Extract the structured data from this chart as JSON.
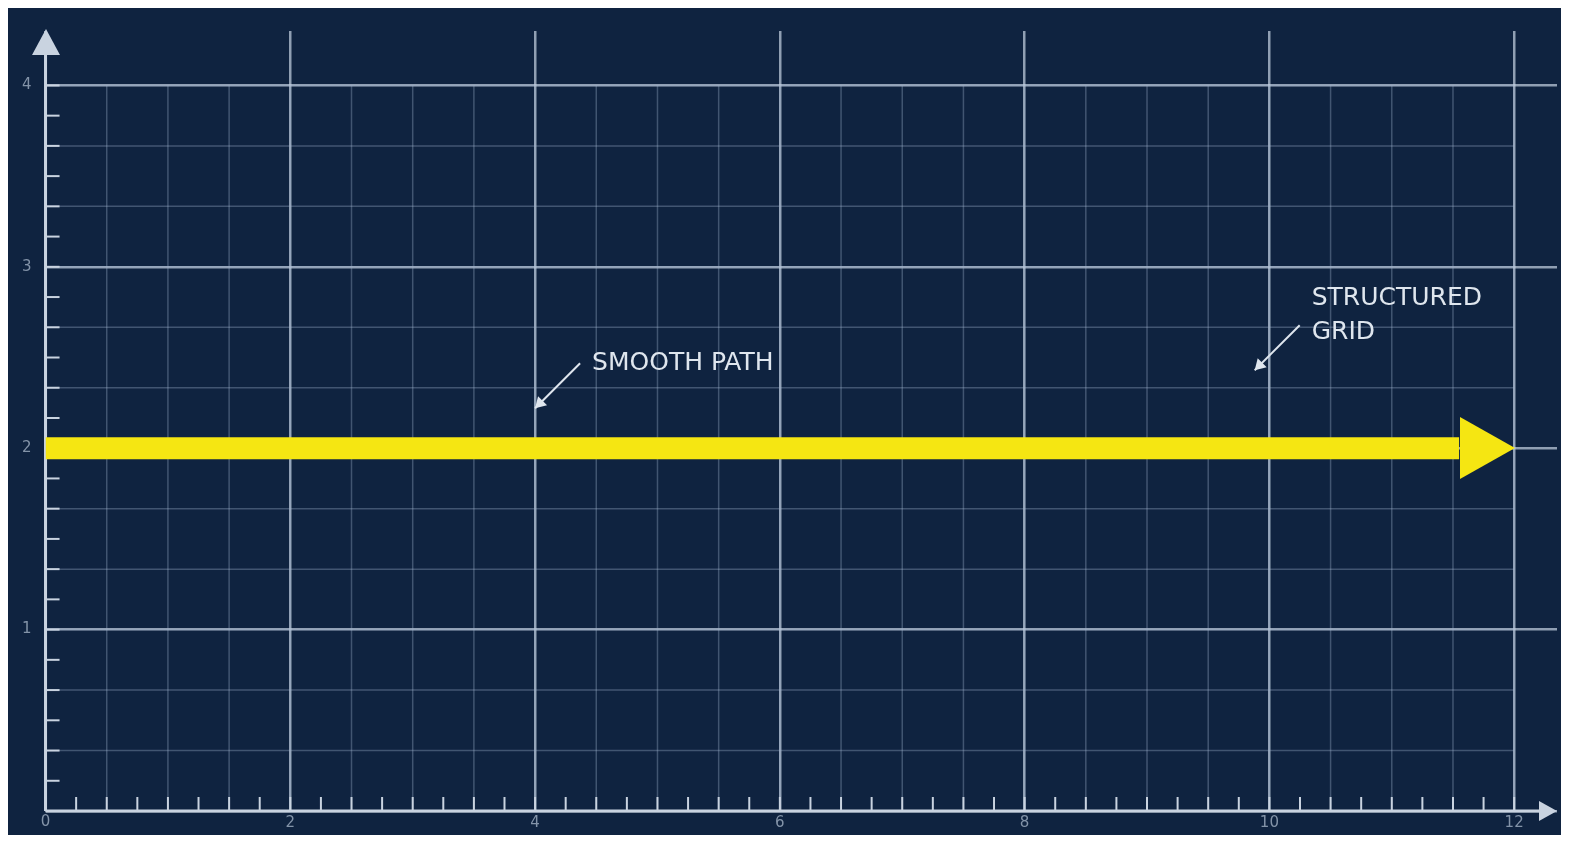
{
  "chart_data": {
    "type": "line",
    "x": [
      0,
      11.55
    ],
    "xlim": [
      0,
      12.35
    ],
    "ylim": [
      0,
      4.3
    ],
    "xticks": [
      0,
      2,
      4,
      6,
      8,
      10,
      12
    ],
    "yticks": [
      {
        "value": 0,
        "label": null
      },
      1,
      2,
      3,
      4
    ],
    "series": [
      {
        "color": "#f5e612",
        "values": [
          2,
          2
        ]
      }
    ],
    "grid": true,
    "legend": false,
    "annotations": [
      "SMOOTH PATH",
      "STRUCTURED\nGRID"
    ]
  }
}
